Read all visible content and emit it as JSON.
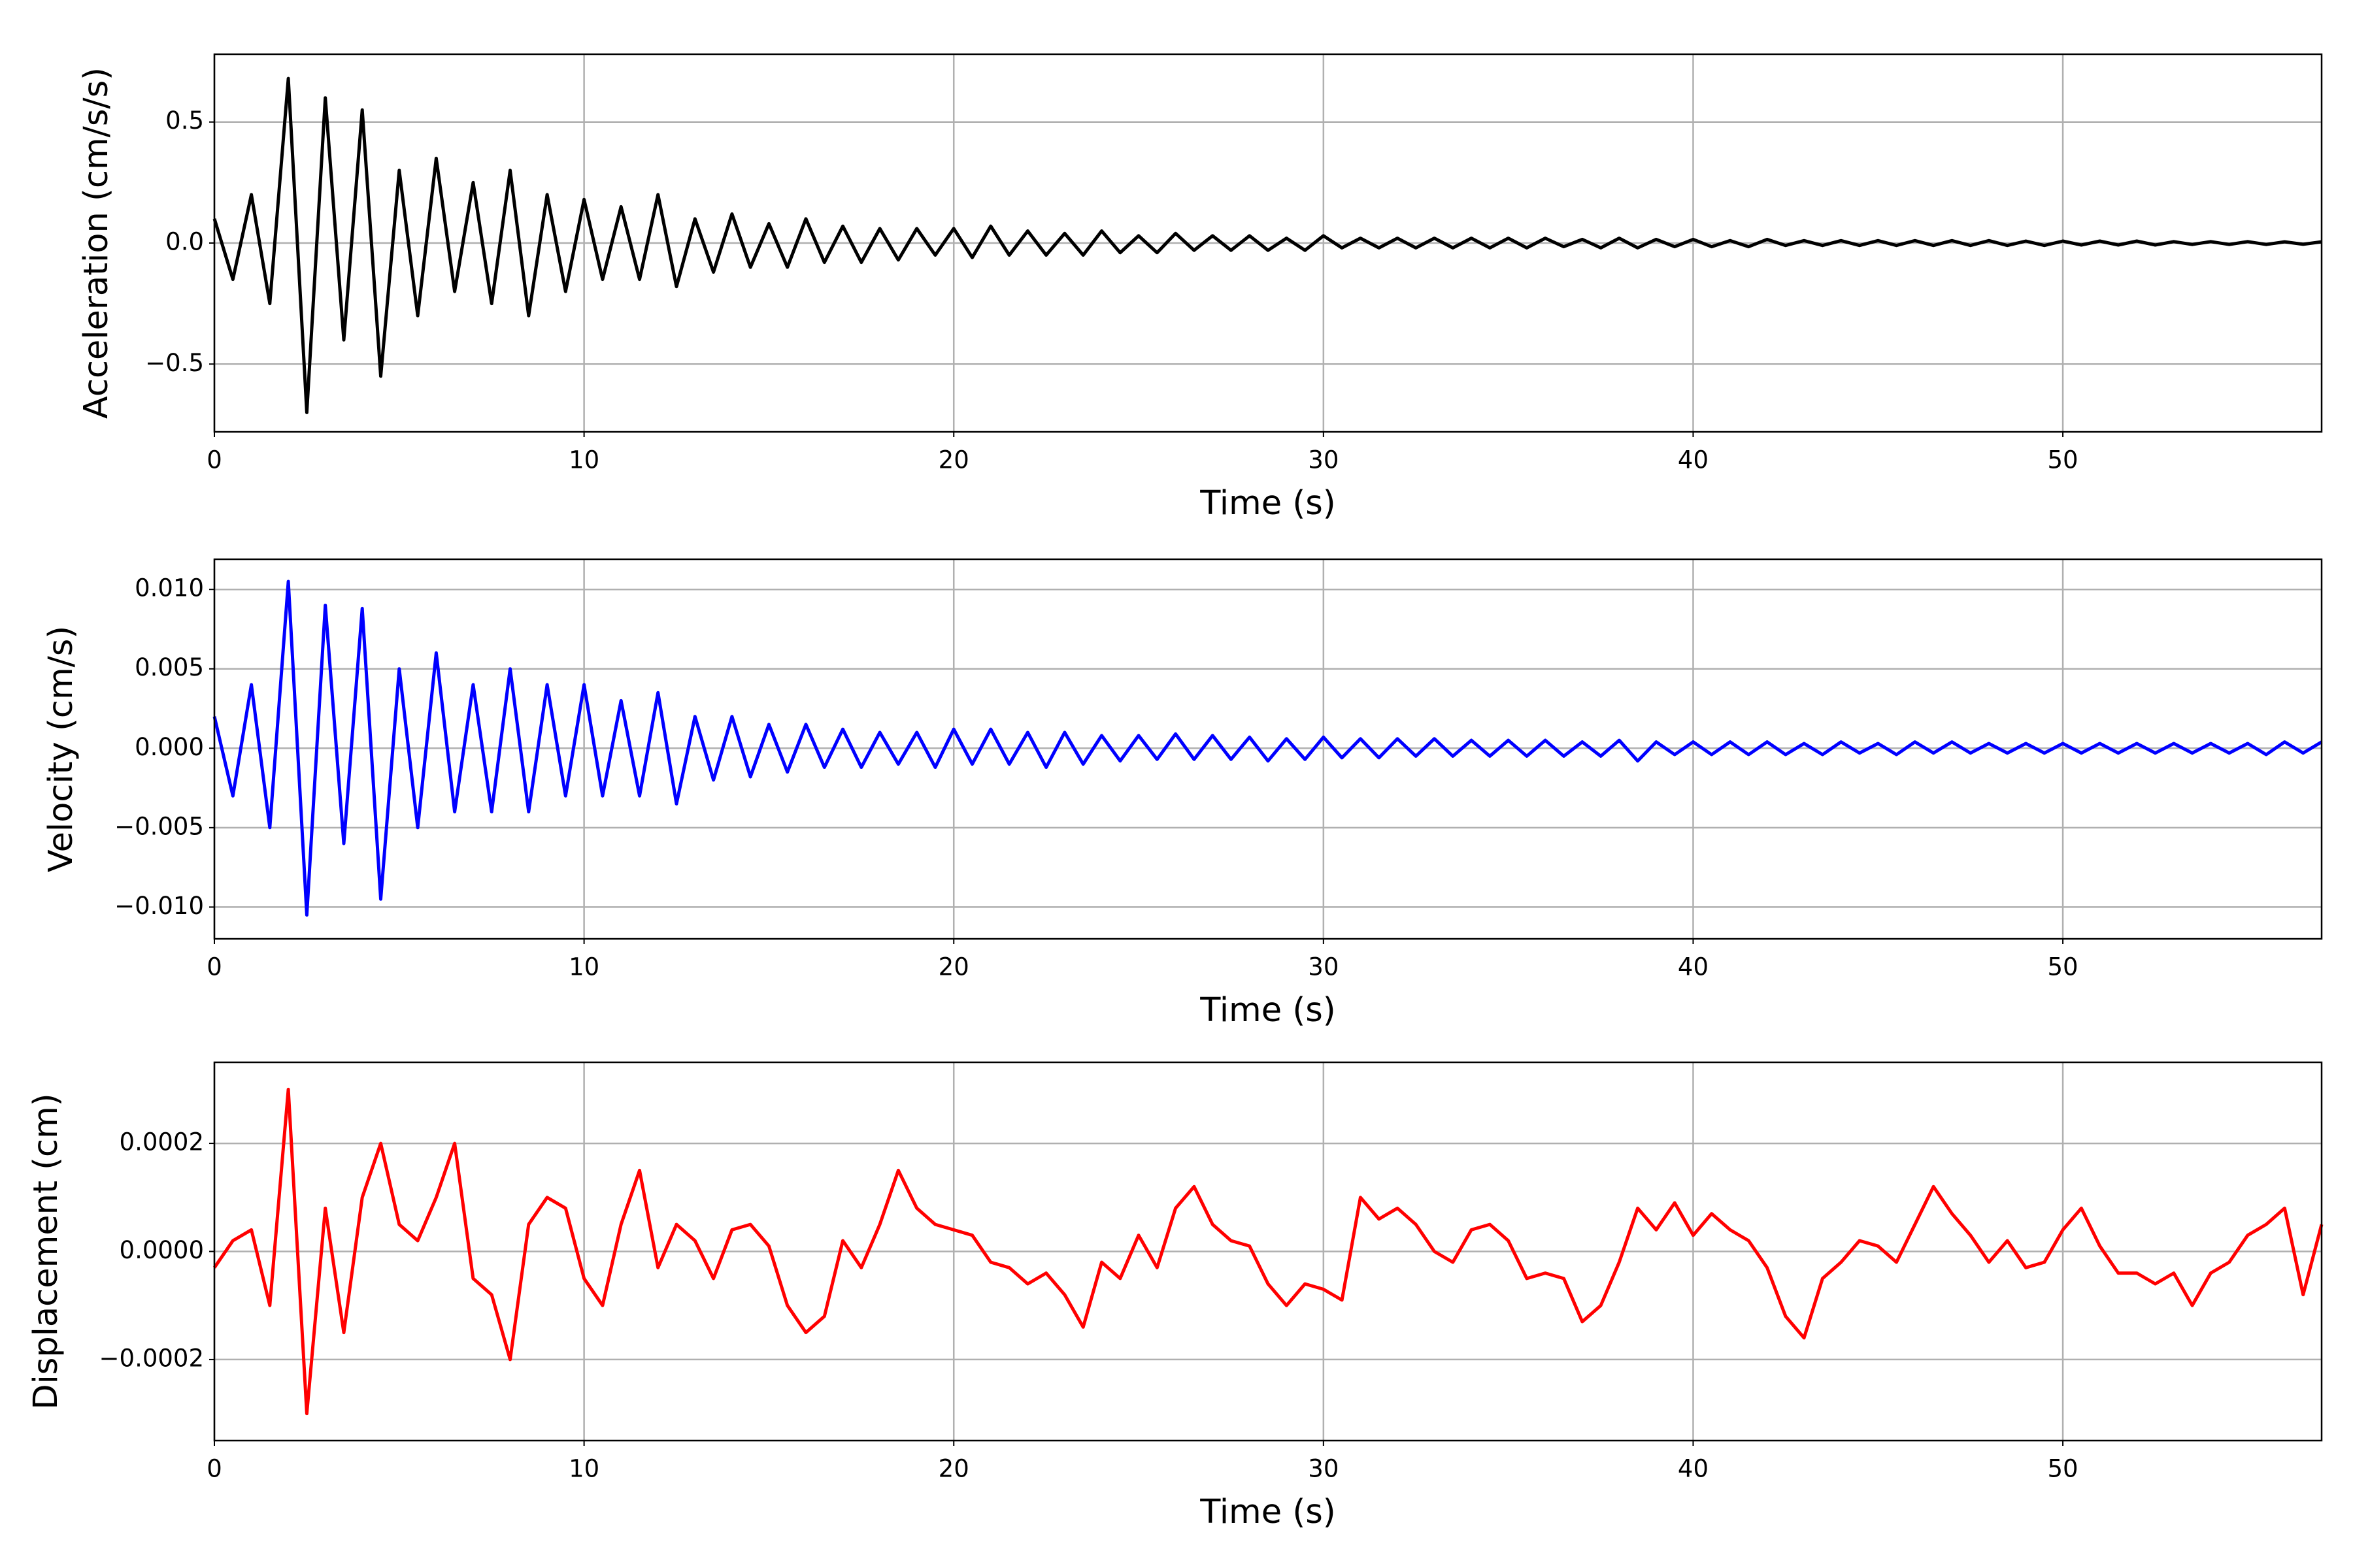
{
  "chart_data": [
    {
      "type": "line",
      "xlabel": "Time (s)",
      "ylabel": "Acceleration (cm/s/s)",
      "color": "#000000",
      "grid": true,
      "xlim": [
        0,
        57
      ],
      "xticks": [
        0,
        10,
        20,
        30,
        40,
        50
      ],
      "ylim": [
        -0.78,
        0.78
      ],
      "yticks": [
        {
          "value": -0.5,
          "label": "−0.5"
        },
        {
          "value": 0,
          "label": "0.0"
        },
        0.5
      ],
      "x": [
        0,
        0.5,
        1,
        1.5,
        2,
        2.5,
        3,
        3.5,
        4,
        4.5,
        5,
        5.5,
        6,
        6.5,
        7,
        7.5,
        8,
        8.5,
        9,
        9.5,
        10,
        10.5,
        11,
        11.5,
        12,
        12.5,
        13,
        13.5,
        14,
        14.5,
        15,
        15.5,
        16,
        16.5,
        17,
        17.5,
        18,
        18.5,
        19,
        19.5,
        20,
        20.5,
        21,
        21.5,
        22,
        22.5,
        23,
        23.5,
        24,
        24.5,
        25,
        25.5,
        26,
        26.5,
        27,
        27.5,
        28,
        28.5,
        29,
        29.5,
        30,
        30.5,
        31,
        31.5,
        32,
        32.5,
        33,
        33.5,
        34,
        34.5,
        35,
        35.5,
        36,
        36.5,
        37,
        37.5,
        38,
        38.5,
        39,
        39.5,
        40,
        40.5,
        41,
        41.5,
        42,
        42.5,
        43,
        43.5,
        44,
        44.5,
        45,
        45.5,
        46,
        46.5,
        47,
        47.5,
        48,
        48.5,
        49,
        49.5,
        50,
        50.5,
        51,
        51.5,
        52,
        52.5,
        53,
        53.5,
        54,
        54.5,
        55,
        55.5,
        56,
        56.5,
        57
      ],
      "values": [
        0.1,
        -0.15,
        0.2,
        -0.25,
        0.68,
        -0.7,
        0.6,
        -0.4,
        0.55,
        -0.55,
        0.3,
        -0.3,
        0.35,
        -0.2,
        0.25,
        -0.25,
        0.3,
        -0.3,
        0.2,
        -0.2,
        0.18,
        -0.15,
        0.15,
        -0.15,
        0.2,
        -0.18,
        0.1,
        -0.12,
        0.12,
        -0.1,
        0.08,
        -0.1,
        0.1,
        -0.08,
        0.07,
        -0.08,
        0.06,
        -0.07,
        0.06,
        -0.05,
        0.06,
        -0.06,
        0.07,
        -0.05,
        0.05,
        -0.05,
        0.04,
        -0.05,
        0.05,
        -0.04,
        0.03,
        -0.04,
        0.04,
        -0.03,
        0.03,
        -0.03,
        0.03,
        -0.03,
        0.02,
        -0.03,
        0.03,
        -0.02,
        0.02,
        -0.02,
        0.02,
        -0.02,
        0.02,
        -0.02,
        0.02,
        -0.02,
        0.02,
        -0.02,
        0.02,
        -0.015,
        0.015,
        -0.02,
        0.02,
        -0.02,
        0.015,
        -0.015,
        0.015,
        -0.015,
        0.01,
        -0.015,
        0.015,
        -0.01,
        0.01,
        -0.01,
        0.01,
        -0.01,
        0.01,
        -0.01,
        0.01,
        -0.01,
        0.01,
        -0.01,
        0.01,
        -0.01,
        0.008,
        -0.01,
        0.008,
        -0.008,
        0.008,
        -0.008,
        0.008,
        -0.008,
        0.006,
        -0.006,
        0.006,
        -0.006,
        0.006,
        -0.006,
        0.005,
        -0.005,
        0.005
      ]
    },
    {
      "type": "line",
      "xlabel": "Time (s)",
      "ylabel": "Velocity (cm/s)",
      "color": "#0000ff",
      "grid": true,
      "xlim": [
        0,
        57
      ],
      "xticks": [
        0,
        10,
        20,
        30,
        40,
        50
      ],
      "ylim": [
        -0.012,
        0.0119
      ],
      "yticks": [
        {
          "value": -0.01,
          "label": "−0.010"
        },
        {
          "value": -0.005,
          "label": "−0.005"
        },
        {
          "value": 0,
          "label": "0.000"
        },
        {
          "value": 0.005,
          "label": "0.005"
        },
        {
          "value": 0.01,
          "label": "0.010"
        }
      ],
      "x": [
        0,
        0.5,
        1,
        1.5,
        2,
        2.5,
        3,
        3.5,
        4,
        4.5,
        5,
        5.5,
        6,
        6.5,
        7,
        7.5,
        8,
        8.5,
        9,
        9.5,
        10,
        10.5,
        11,
        11.5,
        12,
        12.5,
        13,
        13.5,
        14,
        14.5,
        15,
        15.5,
        16,
        16.5,
        17,
        17.5,
        18,
        18.5,
        19,
        19.5,
        20,
        20.5,
        21,
        21.5,
        22,
        22.5,
        23,
        23.5,
        24,
        24.5,
        25,
        25.5,
        26,
        26.5,
        27,
        27.5,
        28,
        28.5,
        29,
        29.5,
        30,
        30.5,
        31,
        31.5,
        32,
        32.5,
        33,
        33.5,
        34,
        34.5,
        35,
        35.5,
        36,
        36.5,
        37,
        37.5,
        38,
        38.5,
        39,
        39.5,
        40,
        40.5,
        41,
        41.5,
        42,
        42.5,
        43,
        43.5,
        44,
        44.5,
        45,
        45.5,
        46,
        46.5,
        47,
        47.5,
        48,
        48.5,
        49,
        49.5,
        50,
        50.5,
        51,
        51.5,
        52,
        52.5,
        53,
        53.5,
        54,
        54.5,
        55,
        55.5,
        56,
        56.5,
        57
      ],
      "values": [
        0.002,
        -0.003,
        0.004,
        -0.005,
        0.0105,
        -0.0105,
        0.009,
        -0.006,
        0.0088,
        -0.0095,
        0.005,
        -0.005,
        0.006,
        -0.004,
        0.004,
        -0.004,
        0.005,
        -0.004,
        0.004,
        -0.003,
        0.004,
        -0.003,
        0.003,
        -0.003,
        0.0035,
        -0.0035,
        0.002,
        -0.002,
        0.002,
        -0.0018,
        0.0015,
        -0.0015,
        0.0015,
        -0.0012,
        0.0012,
        -0.0012,
        0.001,
        -0.001,
        0.001,
        -0.0012,
        0.0012,
        -0.001,
        0.0012,
        -0.001,
        0.001,
        -0.0012,
        0.001,
        -0.001,
        0.0008,
        -0.0008,
        0.0008,
        -0.0007,
        0.0009,
        -0.0007,
        0.0008,
        -0.0007,
        0.0007,
        -0.0008,
        0.0006,
        -0.0007,
        0.0007,
        -0.0006,
        0.0006,
        -0.0006,
        0.0006,
        -0.0005,
        0.0006,
        -0.0005,
        0.0005,
        -0.0005,
        0.0005,
        -0.0005,
        0.0005,
        -0.0005,
        0.0004,
        -0.0005,
        0.0005,
        -0.0008,
        0.0004,
        -0.0004,
        0.0004,
        -0.0004,
        0.0004,
        -0.0004,
        0.0004,
        -0.0004,
        0.0003,
        -0.0004,
        0.0004,
        -0.0003,
        0.0003,
        -0.0004,
        0.0004,
        -0.0003,
        0.0004,
        -0.0003,
        0.0003,
        -0.0003,
        0.0003,
        -0.0003,
        0.0003,
        -0.0003,
        0.0003,
        -0.0003,
        0.0003,
        -0.0003,
        0.0003,
        -0.0003,
        0.0003,
        -0.0003,
        0.0003,
        -0.0004,
        0.0004,
        -0.0003,
        0.0004
      ]
    },
    {
      "type": "line",
      "xlabel": "Time (s)",
      "ylabel": "Displacement (cm)",
      "color": "#ff0000",
      "grid": true,
      "xlim": [
        0,
        57
      ],
      "xticks": [
        0,
        10,
        20,
        30,
        40,
        50
      ],
      "ylim": [
        -0.00035,
        0.00035
      ],
      "yticks": [
        {
          "value": -0.0002,
          "label": "−0.0002"
        },
        {
          "value": 0,
          "label": "0.0000"
        },
        0.0002
      ],
      "x": [
        0,
        0.5,
        1,
        1.5,
        2,
        2.5,
        3,
        3.5,
        4,
        4.5,
        5,
        5.5,
        6,
        6.5,
        7,
        7.5,
        8,
        8.5,
        9,
        9.5,
        10,
        10.5,
        11,
        11.5,
        12,
        12.5,
        13,
        13.5,
        14,
        14.5,
        15,
        15.5,
        16,
        16.5,
        17,
        17.5,
        18,
        18.5,
        19,
        19.5,
        20,
        20.5,
        21,
        21.5,
        22,
        22.5,
        23,
        23.5,
        24,
        24.5,
        25,
        25.5,
        26,
        26.5,
        27,
        27.5,
        28,
        28.5,
        29,
        29.5,
        30,
        30.5,
        31,
        31.5,
        32,
        32.5,
        33,
        33.5,
        34,
        34.5,
        35,
        35.5,
        36,
        36.5,
        37,
        37.5,
        38,
        38.5,
        39,
        39.5,
        40,
        40.5,
        41,
        41.5,
        42,
        42.5,
        43,
        43.5,
        44,
        44.5,
        45,
        45.5,
        46,
        46.5,
        47,
        47.5,
        48,
        48.5,
        49,
        49.5,
        50,
        50.5,
        51,
        51.5,
        52,
        52.5,
        53,
        53.5,
        54,
        54.5,
        55,
        55.5,
        56,
        56.5,
        57
      ],
      "values": [
        -3e-05,
        2e-05,
        4e-05,
        -0.0001,
        0.0003,
        -0.0003,
        8e-05,
        -0.00015,
        0.0001,
        0.0002,
        5e-05,
        2e-05,
        0.0001,
        0.0002,
        -5e-05,
        -8e-05,
        -0.0002,
        5e-05,
        0.0001,
        8e-05,
        -5e-05,
        -0.0001,
        5e-05,
        0.00015,
        -3e-05,
        5e-05,
        2e-05,
        -5e-05,
        4e-05,
        5e-05,
        1e-05,
        -0.0001,
        -0.00015,
        -0.00012,
        2e-05,
        -3e-05,
        5e-05,
        0.00015,
        8e-05,
        5e-05,
        4e-05,
        3e-05,
        -2e-05,
        -3e-05,
        -6e-05,
        -4e-05,
        -8e-05,
        -0.00014,
        -2e-05,
        -5e-05,
        3e-05,
        -3e-05,
        8e-05,
        0.00012,
        5e-05,
        2e-05,
        1e-05,
        -6e-05,
        -0.0001,
        -6e-05,
        -7e-05,
        -9e-05,
        0.0001,
        6e-05,
        8e-05,
        5e-05,
        0,
        -2e-05,
        4e-05,
        5e-05,
        2e-05,
        -5e-05,
        -4e-05,
        -5e-05,
        -0.00013,
        -0.0001,
        -2e-05,
        8e-05,
        4e-05,
        9e-05,
        3e-05,
        7e-05,
        4e-05,
        2e-05,
        -3e-05,
        -0.00012,
        -0.00016,
        -5e-05,
        -2e-05,
        2e-05,
        1e-05,
        -2e-05,
        5e-05,
        0.00012,
        7e-05,
        3e-05,
        -2e-05,
        2e-05,
        -3e-05,
        -2e-05,
        4e-05,
        8e-05,
        1e-05,
        -4e-05,
        -4e-05,
        -6e-05,
        -4e-05,
        -0.0001,
        -4e-05,
        -2e-05,
        3e-05,
        5e-05,
        8e-05,
        -8e-05,
        5e-05
      ]
    }
  ]
}
